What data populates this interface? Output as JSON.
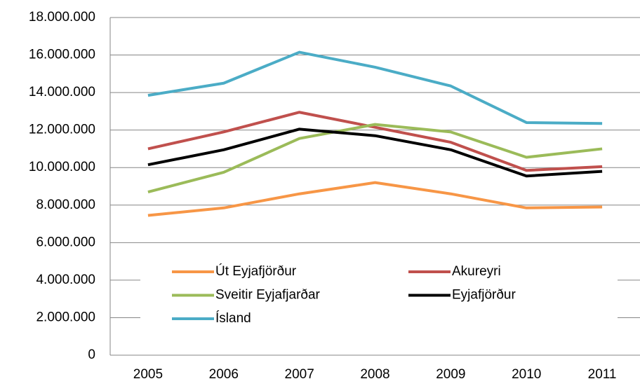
{
  "chart_data": {
    "type": "line",
    "categories": [
      "2005",
      "2006",
      "2007",
      "2008",
      "2009",
      "2010",
      "2011"
    ],
    "series": [
      {
        "name": "Út Eyjafjörður",
        "color": "#f79646",
        "values": [
          7450000,
          7850000,
          8600000,
          9200000,
          8600000,
          7850000,
          7900000
        ]
      },
      {
        "name": "Akureyri",
        "color": "#c0504d",
        "values": [
          11000000,
          11900000,
          12950000,
          12150000,
          11350000,
          9850000,
          10050000
        ]
      },
      {
        "name": "Sveitir Eyjafjarðar",
        "color": "#9bbb59",
        "values": [
          8700000,
          9750000,
          11550000,
          12300000,
          11900000,
          10550000,
          11000000
        ]
      },
      {
        "name": "Eyjafjörður",
        "color": "#000000",
        "values": [
          10150000,
          10950000,
          12050000,
          11700000,
          10950000,
          9550000,
          9800000
        ]
      },
      {
        "name": "Ísland",
        "color": "#4bacc6",
        "values": [
          13850000,
          14500000,
          16150000,
          15350000,
          14350000,
          12400000,
          12350000
        ]
      }
    ],
    "ylim": [
      0,
      18000000
    ],
    "yticks": [
      0,
      {
        "value": 2000000,
        "label": "2.000.000"
      },
      {
        "value": 4000000,
        "label": "4.000.000"
      },
      {
        "value": 6000000,
        "label": "6.000.000"
      },
      {
        "value": 8000000,
        "label": "8.000.000"
      },
      {
        "value": 10000000,
        "label": "10.000.000"
      },
      {
        "value": 12000000,
        "label": "12.000.000"
      },
      {
        "value": 14000000,
        "label": "14.000.000"
      },
      {
        "value": 16000000,
        "label": "16.000.000"
      },
      {
        "value": 18000000,
        "label": "18.000.000"
      }
    ],
    "grid": true,
    "legend": "inside"
  }
}
